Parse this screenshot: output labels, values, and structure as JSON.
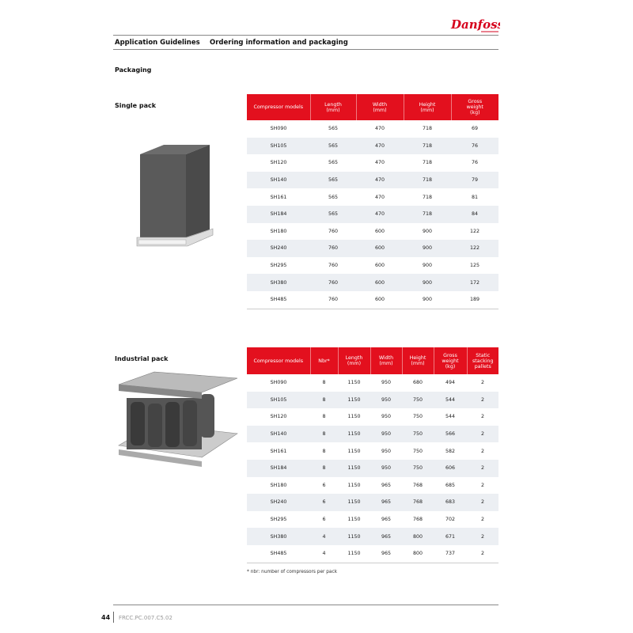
{
  "header": {
    "brand": "Danfoss",
    "section": "Application Guidelines",
    "title": "Ordering information and packaging"
  },
  "page_heading": "Packaging",
  "single_pack": {
    "label": "Single pack",
    "columns": [
      "Compressor models",
      "Length\n(mm)",
      "Width\n(mm)",
      "Height\n(mm)",
      "Gross\nweight\n(kg)"
    ],
    "rows": [
      [
        "SH090",
        "565",
        "470",
        "718",
        "69"
      ],
      [
        "SH105",
        "565",
        "470",
        "718",
        "76"
      ],
      [
        "SH120",
        "565",
        "470",
        "718",
        "76"
      ],
      [
        "SH140",
        "565",
        "470",
        "718",
        "79"
      ],
      [
        "SH161",
        "565",
        "470",
        "718",
        "81"
      ],
      [
        "SH184",
        "565",
        "470",
        "718",
        "84"
      ],
      [
        "SH180",
        "760",
        "600",
        "900",
        "122"
      ],
      [
        "SH240",
        "760",
        "600",
        "900",
        "122"
      ],
      [
        "SH295",
        "760",
        "600",
        "900",
        "125"
      ],
      [
        "SH380",
        "760",
        "600",
        "900",
        "172"
      ],
      [
        "SH485",
        "760",
        "600",
        "900",
        "189"
      ]
    ]
  },
  "industrial_pack": {
    "label": "Industrial pack",
    "columns": [
      "Compressor models",
      "Nbr*",
      "Length\n(mm)",
      "Width\n(mm)",
      "Height\n(mm)",
      "Gross\nweight\n(kg)",
      "Static\nstacking\npallets"
    ],
    "rows": [
      [
        "SH090",
        "8",
        "1150",
        "950",
        "680",
        "494",
        "2"
      ],
      [
        "SH105",
        "8",
        "1150",
        "950",
        "750",
        "544",
        "2"
      ],
      [
        "SH120",
        "8",
        "1150",
        "950",
        "750",
        "544",
        "2"
      ],
      [
        "SH140",
        "8",
        "1150",
        "950",
        "750",
        "566",
        "2"
      ],
      [
        "SH161",
        "8",
        "1150",
        "950",
        "750",
        "582",
        "2"
      ],
      [
        "SH184",
        "8",
        "1150",
        "950",
        "750",
        "606",
        "2"
      ],
      [
        "SH180",
        "6",
        "1150",
        "965",
        "768",
        "685",
        "2"
      ],
      [
        "SH240",
        "6",
        "1150",
        "965",
        "768",
        "683",
        "2"
      ],
      [
        "SH295",
        "6",
        "1150",
        "965",
        "768",
        "702",
        "2"
      ],
      [
        "SH380",
        "4",
        "1150",
        "965",
        "800",
        "671",
        "2"
      ],
      [
        "SH485",
        "4",
        "1150",
        "965",
        "800",
        "737",
        "2"
      ]
    ],
    "footnote": "* nbr: number of compressors per pack"
  },
  "footer": {
    "page_number": "44",
    "doc_code": "FRCC.PC.007.C5.02"
  },
  "colors": {
    "header_red": "#e3101e",
    "row_alt": "#eceff3",
    "logo_red": "#d6001c"
  }
}
